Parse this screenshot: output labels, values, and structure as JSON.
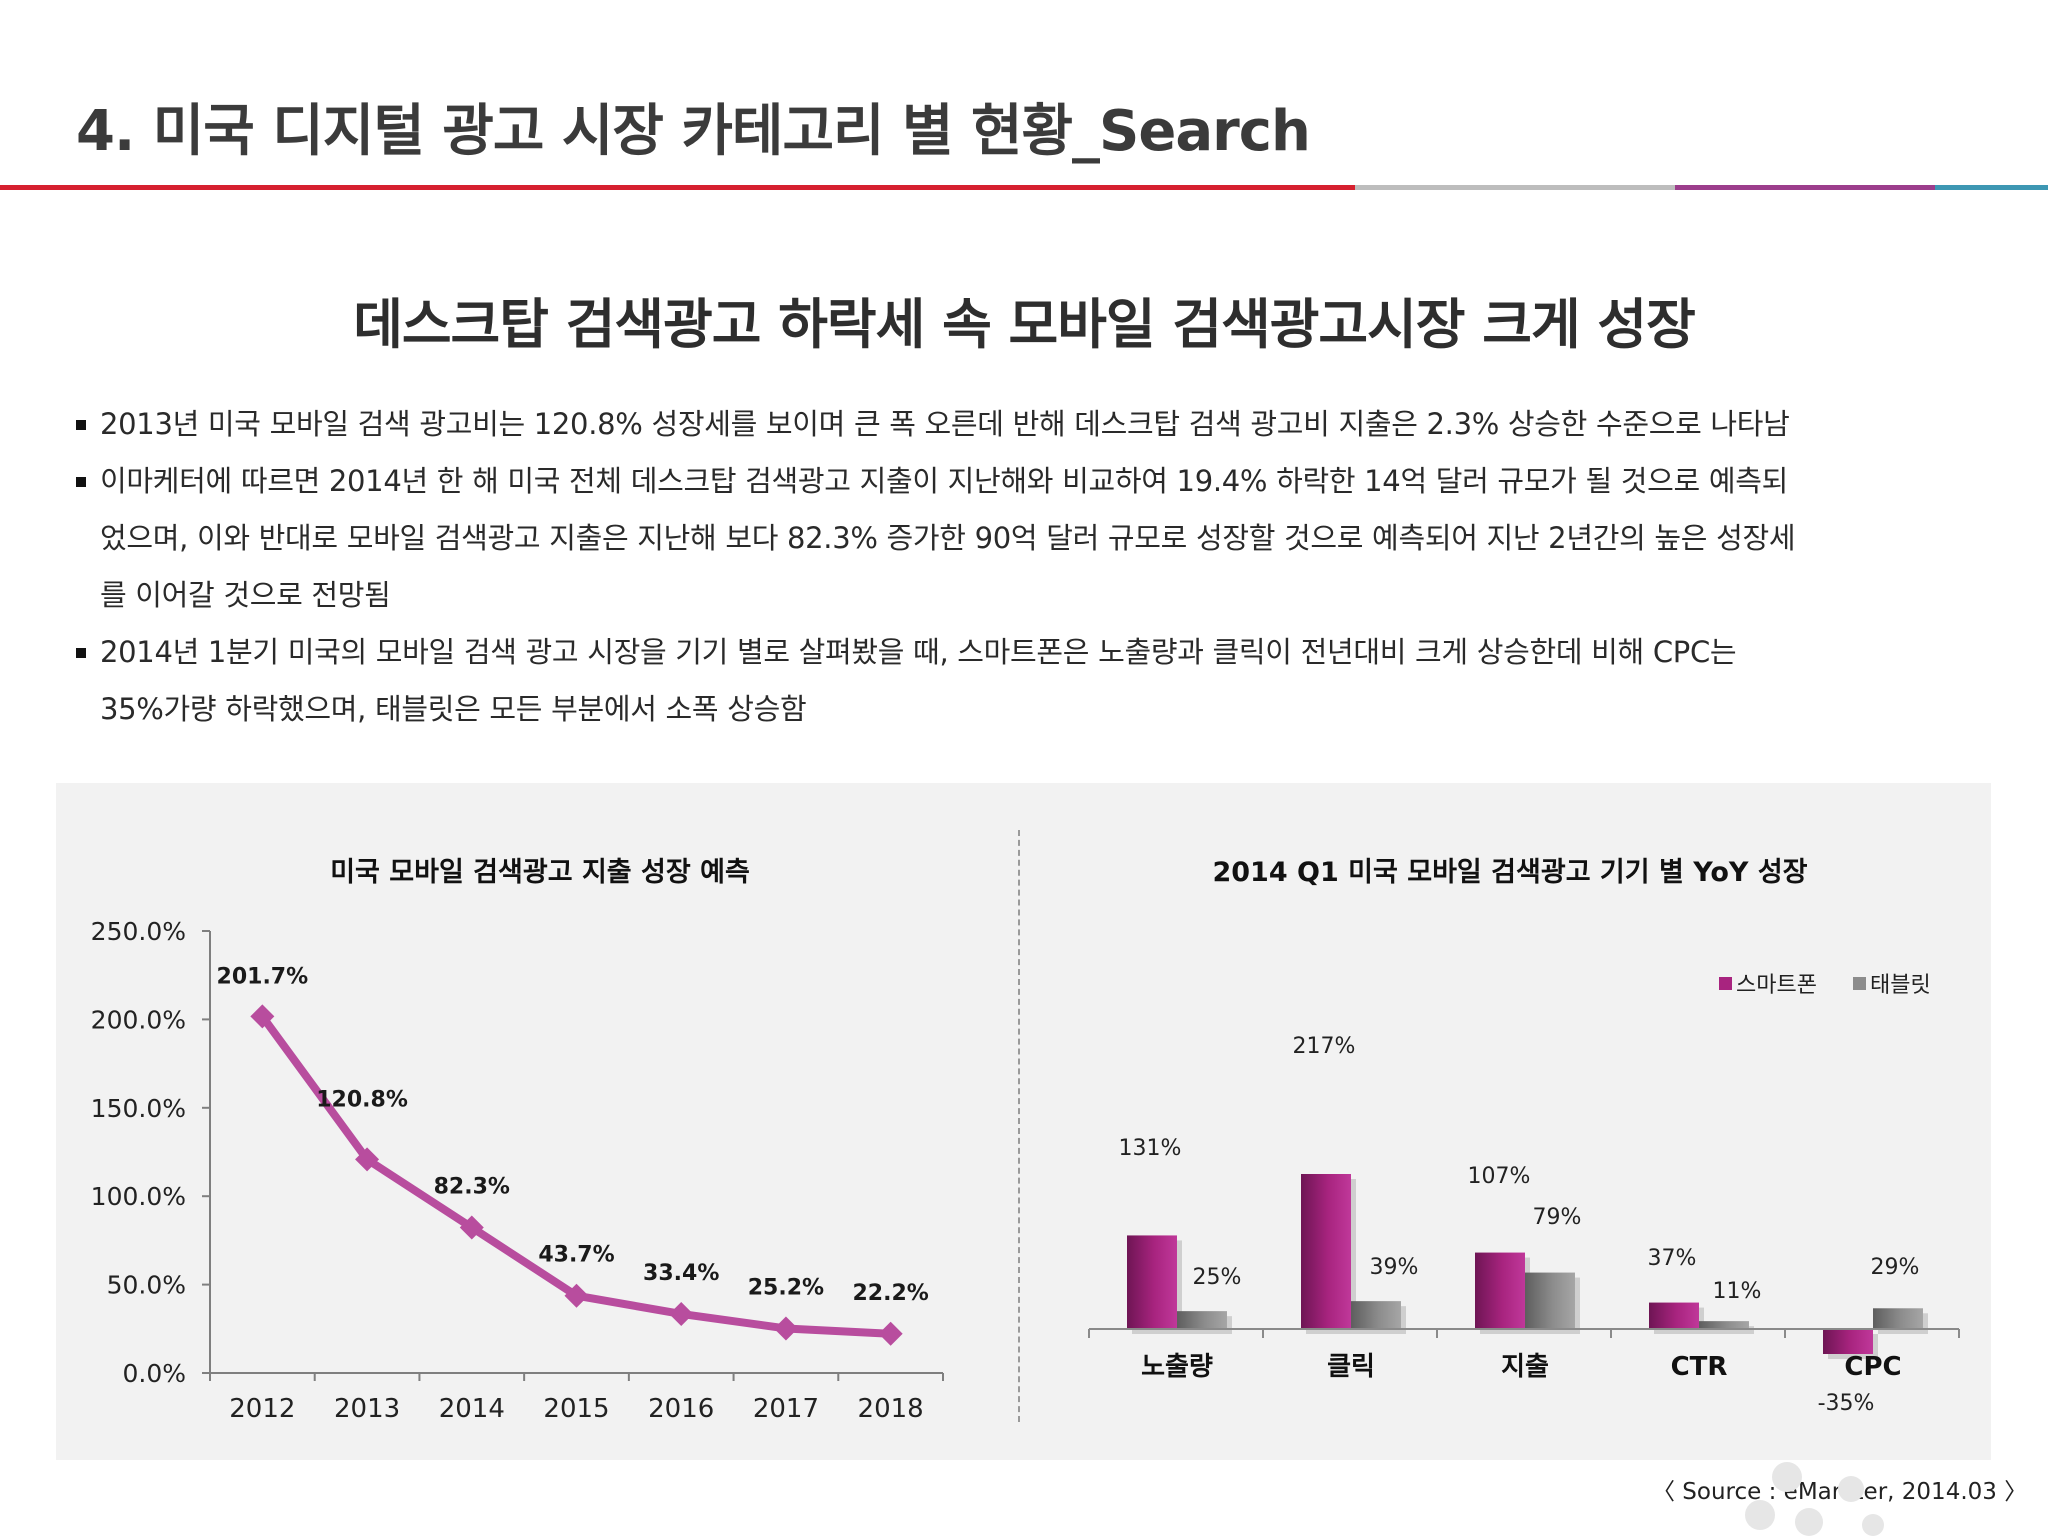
{
  "page": {
    "title": "4. 미국 디지털 광고 시장 카테고리 별 현황_Search",
    "headline": "데스크탑 검색광고 하락세 속 모바일 검색광고시장 크게 성장",
    "bullets": [
      [
        "2013년 미국 모바일 검색 광고비는 120.8% 성장세를 보이며 큰 폭 오른데 반해 데스크탑 검색 광고비 지출은 2.3% 상승한 수준으로 나타남"
      ],
      [
        "이마케터에 따르면 2014년 한 해 미국 전체 데스크탑 검색광고 지출이 지난해와 비교하여 19.4% 하락한 14억 달러 규모가 될 것으로 예측되",
        "었으며, 이와 반대로 모바일 검색광고 지출은 지난해 보다 82.3% 증가한 90억 달러 규모로 성장할 것으로 예측되어 지난 2년간의 높은 성장세",
        "를 이어갈 것으로 전망됨"
      ],
      [
        "2014년 1분기 미국의 모바일 검색 광고 시장을 기기 별로 살펴봤을 때, 스마트폰은 노출량과 클릭이 전년대비 크게 상승한데 비해 CPC는",
        "35%가량 하락했으며, 태블릿은 모든 부분에서 소폭 상승함"
      ]
    ],
    "source": "〈 Source : eMarkter, 2014.03 〉",
    "colors": {
      "rule_red": "#d6202f",
      "rule_gray": "#bdbdbd",
      "rule_purple": "#9c3d8c",
      "rule_teal": "#3d97b3",
      "line": "#b84d9e",
      "smartphone": "#a8247f",
      "tablet": "#8c8c8c"
    }
  },
  "chart_data": [
    {
      "type": "line",
      "title": "미국 모바일 검색광고 지출 성장 예측",
      "x": [
        "2012",
        "2013",
        "2014",
        "2015",
        "2016",
        "2017",
        "2018"
      ],
      "values": [
        201.7,
        120.8,
        82.3,
        43.7,
        33.4,
        25.2,
        22.2
      ],
      "data_labels": [
        "201.7%",
        "120.8%",
        "82.3%",
        "43.7%",
        "33.4%",
        "25.2%",
        "22.2%"
      ],
      "ylim": [
        0,
        250
      ],
      "yticks": [
        0,
        50,
        100,
        150,
        200,
        250
      ],
      "ytick_labels": [
        "0.0%",
        "50.0%",
        "100.0%",
        "150.0%",
        "200.0%",
        "250.0%"
      ],
      "grid": false
    },
    {
      "type": "bar",
      "title": "2014 Q1 미국 모바일 검색광고 기기 별 YoY 성장",
      "categories": [
        "노출량",
        "클릭",
        "지출",
        "CTR",
        "CPC"
      ],
      "series": [
        {
          "name": "스마트폰",
          "values": [
            131,
            217,
            107,
            37,
            -35
          ],
          "labels": [
            "131%",
            "217%",
            "107%",
            "37%",
            "-35%"
          ]
        },
        {
          "name": "태블릿",
          "values": [
            25,
            39,
            79,
            11,
            29
          ],
          "labels": [
            "25%",
            "39%",
            "79%",
            "11%",
            "29%"
          ]
        }
      ],
      "legend": "top-right",
      "grid": false
    }
  ]
}
